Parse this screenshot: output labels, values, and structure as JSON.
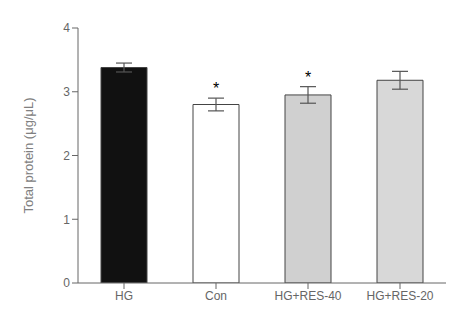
{
  "chart_data": {
    "type": "bar",
    "categories": [
      "HG",
      "Con",
      "HG+RES-40",
      "HG+RES-20"
    ],
    "values": [
      3.38,
      2.8,
      2.95,
      3.18
    ],
    "errors": [
      0.07,
      0.1,
      0.13,
      0.14
    ],
    "colors": [
      "#111111",
      "#ffffff",
      "#d0d0d0",
      "#d8d8d8"
    ],
    "ylabel": "Total protein (μg/μL)",
    "ylim": [
      0,
      4
    ],
    "yticks": [
      0,
      1,
      2,
      3,
      4
    ],
    "annotations": [
      {
        "category": "Con",
        "text": "*"
      },
      {
        "category": "HG+RES-40",
        "text": "*"
      }
    ],
    "grid": false
  }
}
